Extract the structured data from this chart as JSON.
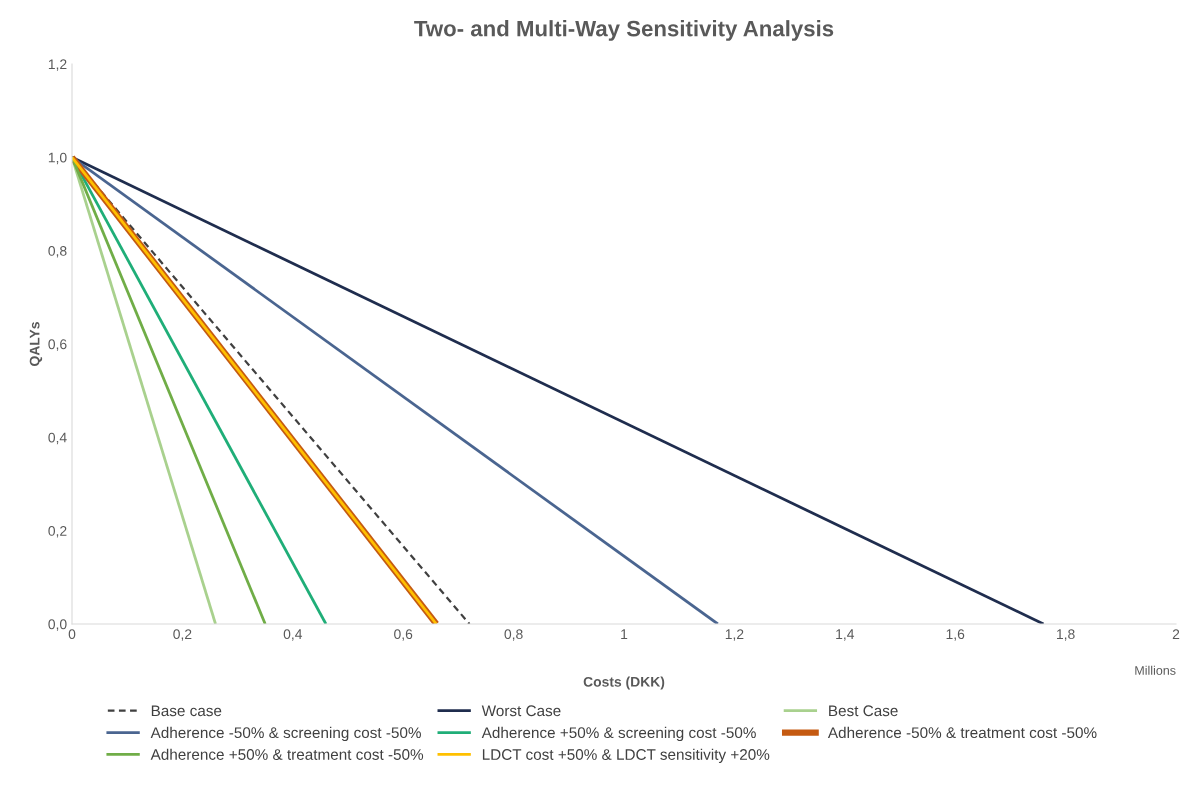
{
  "chart_data": {
    "type": "line",
    "title": "Two- and Multi-Way Sensitivity Analysis",
    "xlabel": "Costs (DKK)",
    "ylabel": "QALYs",
    "annotations": [
      "Millions"
    ],
    "xlim": [
      0,
      2
    ],
    "xticks": [
      0,
      {
        "value": 0.2,
        "label": "0,2"
      },
      {
        "value": 0.4,
        "label": "0,4"
      },
      {
        "value": 0.6,
        "label": "0,6"
      },
      {
        "value": 0.8,
        "label": "0,8"
      },
      1,
      {
        "value": 1.2,
        "label": "1,2"
      },
      {
        "value": 1.4,
        "label": "1,4"
      },
      {
        "value": 1.6,
        "label": "1,6"
      },
      {
        "value": 1.8,
        "label": "1,8"
      },
      2
    ],
    "ylim": [
      0,
      1.2
    ],
    "yticks": [
      {
        "value": 0,
        "label": "0,0"
      },
      {
        "value": 0.2,
        "label": "0,2"
      },
      {
        "value": 0.4,
        "label": "0,4"
      },
      {
        "value": 0.6,
        "label": "0,6"
      },
      {
        "value": 0.8,
        "label": "0,8"
      },
      {
        "value": 1.0,
        "label": "1,0"
      },
      {
        "value": 1.2,
        "label": "1,2"
      }
    ],
    "grid": false,
    "legend": "bottom",
    "marker": "none",
    "series": [
      {
        "name": "Base case",
        "color": "#404040",
        "line_style": "dashed",
        "x": [
          0,
          0.72
        ],
        "values": [
          1,
          0
        ]
      },
      {
        "name": "Worst Case",
        "color": "#1f2d4e",
        "x": [
          0,
          1.76
        ],
        "values": [
          1,
          0
        ]
      },
      {
        "name": "Best Case",
        "color": "#a9d18e",
        "x": [
          0,
          0.26
        ],
        "values": [
          1,
          0
        ]
      },
      {
        "name": "Adherence -50% & screening cost -50%",
        "color": "#4a6590",
        "x": [
          0,
          1.17
        ],
        "values": [
          1,
          0
        ]
      },
      {
        "name": "Adherence +50% & screening cost -50%",
        "color": "#1fae78",
        "x": [
          0,
          0.46
        ],
        "values": [
          1,
          0
        ]
      },
      {
        "name": "Adherence -50% & treatment cost -50%",
        "color": "#c55a11",
        "x": [
          0,
          0.66
        ],
        "values": [
          1,
          0
        ]
      },
      {
        "name": "Adherence +50% & treatment cost -50%",
        "color": "#70ad47",
        "x": [
          0,
          0.35
        ],
        "values": [
          1,
          0
        ]
      },
      {
        "name": "LDCT cost +50% & LDCT sensitivity +20%",
        "color": "#ffc000",
        "x": [
          0,
          0.66
        ],
        "values": [
          1,
          0
        ]
      }
    ]
  }
}
